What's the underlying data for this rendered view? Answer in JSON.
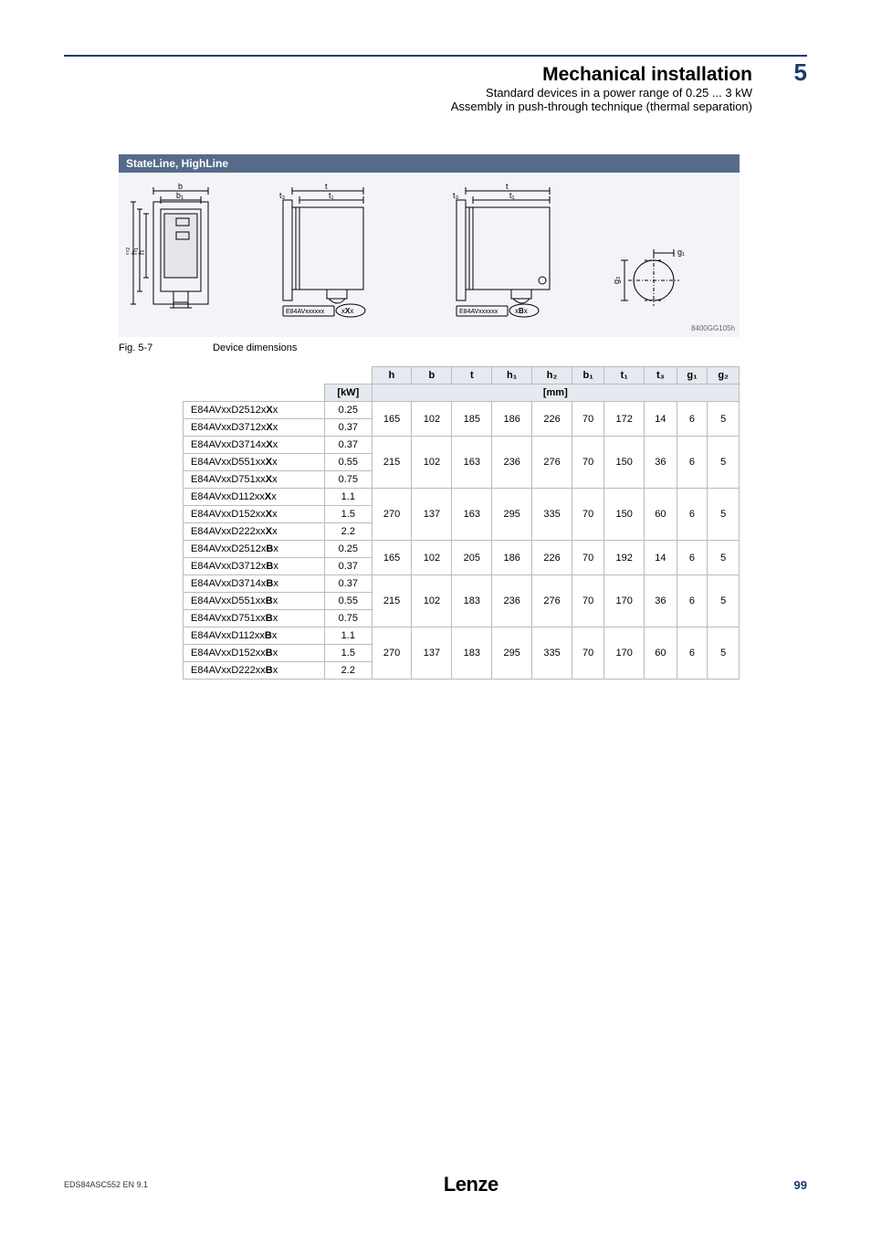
{
  "header": {
    "title": "Mechanical installation",
    "chapter": "5",
    "sub1": "Standard devices in a power range of 0.25 ... 3 kW",
    "sub2": "Assembly in push-through technique (thermal separation)"
  },
  "diagram": {
    "panel_title": "StateLine, HighLine",
    "panel_title_bg": "#566b8a",
    "panel_body_bg": "#f2f4f7",
    "dim_labels": {
      "b": "b",
      "b1": "b₁",
      "h": "h",
      "h1": "h₁",
      "h2": "h₂",
      "t": "t",
      "t1": "t₁",
      "t3": "t₃",
      "g1": "g₁",
      "g2": "g₂"
    },
    "code_box1": "E84AVxxxxxx",
    "code_suffix1": "xXx",
    "code_box2": "E84AVxxxxxx",
    "code_suffix2": "xBx",
    "figure_code": "8400GG105h"
  },
  "caption": {
    "fignum": "Fig. 5-7",
    "text": "Device dimensions"
  },
  "table": {
    "unit_col": "[kW]",
    "unit_row": "[mm]",
    "headers": [
      "h",
      "b",
      "t",
      "h₁",
      "h₂",
      "b₁",
      "t₁",
      "t₃",
      "g₁",
      "g₂"
    ],
    "groups": [
      {
        "rows": [
          {
            "model_pre": "E84AVxxD2512x",
            "model_mid": "X",
            "model_post": "x",
            "kw": "0.25"
          },
          {
            "model_pre": "E84AVxxD3712x",
            "model_mid": "X",
            "model_post": "x",
            "kw": "0.37"
          }
        ],
        "dims": [
          "165",
          "102",
          "185",
          "186",
          "226",
          "70",
          "172",
          "14",
          "6",
          "5"
        ]
      },
      {
        "rows": [
          {
            "model_pre": "E84AVxxD3714x",
            "model_mid": "X",
            "model_post": "x",
            "kw": "0.37"
          },
          {
            "model_pre": "E84AVxxD551xx",
            "model_mid": "X",
            "model_post": "x",
            "kw": "0.55"
          },
          {
            "model_pre": "E84AVxxD751xx",
            "model_mid": "X",
            "model_post": "x",
            "kw": "0.75"
          }
        ],
        "dims": [
          "215",
          "102",
          "163",
          "236",
          "276",
          "70",
          "150",
          "36",
          "6",
          "5"
        ]
      },
      {
        "rows": [
          {
            "model_pre": "E84AVxxD112xx",
            "model_mid": "X",
            "model_post": "x",
            "kw": "1.1"
          },
          {
            "model_pre": "E84AVxxD152xx",
            "model_mid": "X",
            "model_post": "x",
            "kw": "1.5"
          },
          {
            "model_pre": "E84AVxxD222xx",
            "model_mid": "X",
            "model_post": "x",
            "kw": "2.2"
          }
        ],
        "dims": [
          "270",
          "137",
          "163",
          "295",
          "335",
          "70",
          "150",
          "60",
          "6",
          "5"
        ]
      },
      {
        "rows": [
          {
            "model_pre": "E84AVxxD2512x",
            "model_mid": "B",
            "model_post": "x",
            "kw": "0.25"
          },
          {
            "model_pre": "E84AVxxD3712x",
            "model_mid": "B",
            "model_post": "x",
            "kw": "0.37"
          }
        ],
        "dims": [
          "165",
          "102",
          "205",
          "186",
          "226",
          "70",
          "192",
          "14",
          "6",
          "5"
        ]
      },
      {
        "rows": [
          {
            "model_pre": "E84AVxxD3714x",
            "model_mid": "B",
            "model_post": "x",
            "kw": "0.37"
          },
          {
            "model_pre": "E84AVxxD551xx",
            "model_mid": "B",
            "model_post": "x",
            "kw": "0.55"
          },
          {
            "model_pre": "E84AVxxD751xx",
            "model_mid": "B",
            "model_post": "x",
            "kw": "0.75"
          }
        ],
        "dims": [
          "215",
          "102",
          "183",
          "236",
          "276",
          "70",
          "170",
          "36",
          "6",
          "5"
        ]
      },
      {
        "rows": [
          {
            "model_pre": "E84AVxxD112xx",
            "model_mid": "B",
            "model_post": "x",
            "kw": "1.1"
          },
          {
            "model_pre": "E84AVxxD152xx",
            "model_mid": "B",
            "model_post": "x",
            "kw": "1.5"
          },
          {
            "model_pre": "E84AVxxD222xx",
            "model_mid": "B",
            "model_post": "x",
            "kw": "2.2"
          }
        ],
        "dims": [
          "270",
          "137",
          "183",
          "295",
          "335",
          "70",
          "170",
          "60",
          "6",
          "5"
        ]
      }
    ]
  },
  "footer": {
    "doccode": "EDS84ASC552   EN   9.1",
    "logo": "Lenze",
    "page": "99"
  }
}
